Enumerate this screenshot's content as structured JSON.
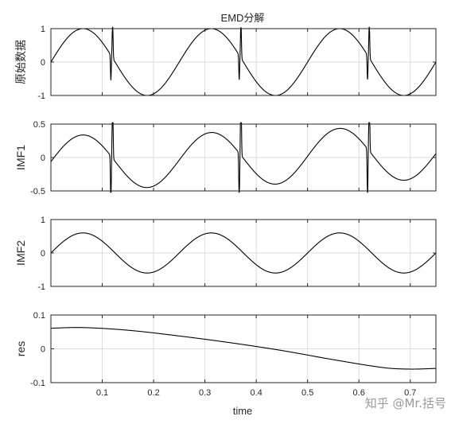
{
  "chart_data": [
    {
      "type": "line",
      "title": "EMD分解",
      "ylabel": "原始数据",
      "xlim": [
        0,
        0.75
      ],
      "ylim": [
        -1,
        1
      ],
      "xticks": [
        0.1,
        0.2,
        0.3,
        0.4,
        0.5,
        0.6,
        0.7
      ],
      "yticks": [
        1,
        0,
        -1
      ],
      "ytick_labels": [
        "1",
        "0",
        "-1"
      ],
      "grid": true,
      "series": [
        {
          "model": "sine_plus_spikes",
          "amplitude": 1.0,
          "period": 0.25,
          "phase_center_peak": 0.0625,
          "spikes_x": [
            0.118,
            0.368,
            0.618
          ],
          "spike_up": 1.08,
          "spike_down": 0.75
        }
      ]
    },
    {
      "type": "line",
      "ylabel": "IMF1",
      "xlim": [
        0,
        0.75
      ],
      "ylim": [
        -0.5,
        0.5
      ],
      "xticks": [
        0.1,
        0.2,
        0.3,
        0.4,
        0.5,
        0.6,
        0.7
      ],
      "yticks": [
        0.5,
        0,
        -0.5
      ],
      "ytick_labels": [
        "0.5",
        "0",
        "-0.5"
      ],
      "grid": true,
      "series": [
        {
          "model": "imf1",
          "amplitude": 0.4,
          "period": 0.25,
          "trend_offset": true,
          "spikes_x": [
            0.118,
            0.368,
            0.618
          ],
          "spike_up": 1.08,
          "spike_down": 0.75
        }
      ]
    },
    {
      "type": "line",
      "ylabel": "IMF2",
      "xlim": [
        0,
        0.75
      ],
      "ylim": [
        -1,
        1
      ],
      "xticks": [
        0.1,
        0.2,
        0.3,
        0.4,
        0.5,
        0.6,
        0.7
      ],
      "yticks": [
        1,
        0,
        -1
      ],
      "ytick_labels": [
        "1",
        "0",
        "-1"
      ],
      "grid": true,
      "series": [
        {
          "model": "sine",
          "amplitude": 0.6,
          "period": 0.25,
          "phase_center_peak": 0.0625
        }
      ]
    },
    {
      "type": "line",
      "ylabel": "res",
      "xlabel": "time",
      "xlim": [
        0,
        0.75
      ],
      "ylim": [
        -0.1,
        0.1
      ],
      "xticks": [
        0.1,
        0.2,
        0.3,
        0.4,
        0.5,
        0.6,
        0.7
      ],
      "xtick_labels": [
        "0.1",
        "0.2",
        "0.3",
        "0.4",
        "0.5",
        "0.6",
        "0.7"
      ],
      "yticks": [
        0.1,
        0,
        -0.1
      ],
      "ytick_labels": [
        "0.1",
        "0",
        "-0.1"
      ],
      "grid": true,
      "series": [
        {
          "model": "trend",
          "x": [
            0,
            0.06,
            0.15,
            0.25,
            0.35,
            0.45,
            0.55,
            0.65,
            0.7,
            0.75
          ],
          "y": [
            0.061,
            0.063,
            0.055,
            0.038,
            0.018,
            -0.005,
            -0.032,
            -0.056,
            -0.06,
            -0.058
          ]
        }
      ]
    }
  ],
  "watermark": "知乎 @Mr.括号"
}
